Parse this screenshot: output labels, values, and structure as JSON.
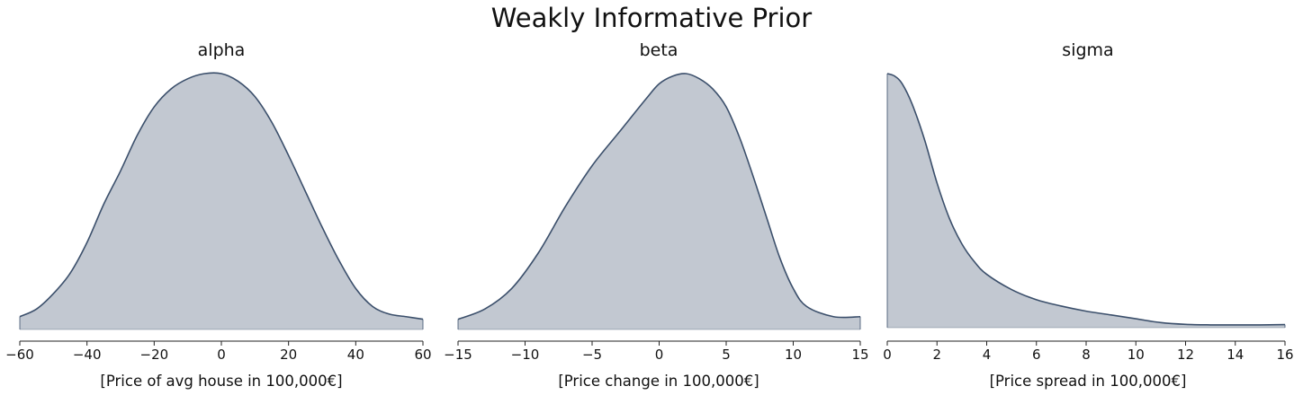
{
  "title": "Weakly Informative Prior",
  "colors": {
    "fill": "#3b4f6b",
    "line": "#3b4f6b"
  },
  "chart_data": [
    {
      "type": "area",
      "title": "alpha",
      "xlabel": "[Price of avg house in 100,000€]",
      "ylabel": "",
      "xlim": [
        -60,
        60
      ],
      "xticks": [
        "−60",
        "−40",
        "−20",
        "0",
        "20",
        "40",
        "60"
      ],
      "xtick_values": [
        -60,
        -40,
        -20,
        0,
        20,
        40,
        60
      ],
      "y_axis_visible": false,
      "series": [
        {
          "x": [
            -60,
            -55,
            -50,
            -45,
            -40,
            -35,
            -30,
            -25,
            -20,
            -15,
            -10,
            -5,
            0,
            5,
            10,
            15,
            20,
            25,
            30,
            35,
            40,
            45,
            50,
            55,
            60
          ],
          "y": [
            0.05,
            0.08,
            0.14,
            0.22,
            0.34,
            0.49,
            0.62,
            0.76,
            0.87,
            0.94,
            0.98,
            1.0,
            1.0,
            0.97,
            0.91,
            0.81,
            0.68,
            0.54,
            0.4,
            0.27,
            0.16,
            0.09,
            0.06,
            0.05,
            0.04
          ]
        }
      ]
    },
    {
      "type": "area",
      "title": "beta",
      "xlabel": "[Price change in 100,000€]",
      "ylabel": "",
      "xlim": [
        -15,
        15
      ],
      "xticks": [
        "−15",
        "−10",
        "−5",
        "0",
        "5",
        "10",
        "15"
      ],
      "xtick_values": [
        -15,
        -10,
        -5,
        0,
        5,
        10,
        15
      ],
      "y_axis_visible": false,
      "series": [
        {
          "x": [
            -15,
            -13,
            -11,
            -9,
            -7,
            -5,
            -3,
            -1,
            0,
            1,
            2,
            3,
            4,
            5,
            6,
            7,
            8,
            9,
            10,
            11,
            13,
            15
          ],
          "y": [
            0.04,
            0.08,
            0.16,
            0.3,
            0.48,
            0.64,
            0.77,
            0.9,
            0.96,
            0.99,
            1.0,
            0.98,
            0.94,
            0.87,
            0.75,
            0.6,
            0.44,
            0.28,
            0.16,
            0.09,
            0.05,
            0.05
          ]
        }
      ]
    },
    {
      "type": "area",
      "title": "sigma",
      "xlabel": "[Price spread in 100,000€]",
      "ylabel": "",
      "xlim": [
        0,
        16
      ],
      "xticks": [
        "0",
        "2",
        "4",
        "6",
        "8",
        "10",
        "12",
        "14",
        "16"
      ],
      "xtick_values": [
        0,
        2,
        4,
        6,
        8,
        10,
        12,
        14,
        16
      ],
      "y_axis_visible": false,
      "series": [
        {
          "x": [
            0,
            0.3,
            0.6,
            1,
            1.5,
            2,
            2.5,
            3,
            3.5,
            4,
            5,
            6,
            7,
            8,
            9,
            10,
            11,
            12,
            13,
            14,
            15,
            16
          ],
          "y": [
            1.0,
            0.99,
            0.96,
            0.88,
            0.74,
            0.57,
            0.43,
            0.33,
            0.26,
            0.21,
            0.15,
            0.11,
            0.085,
            0.065,
            0.05,
            0.035,
            0.02,
            0.013,
            0.011,
            0.011,
            0.011,
            0.012
          ]
        }
      ]
    }
  ]
}
